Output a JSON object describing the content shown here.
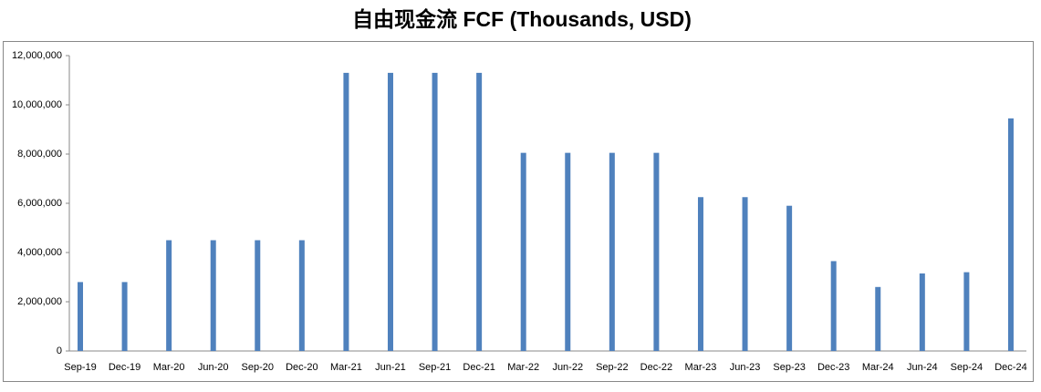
{
  "chart_data": {
    "type": "bar",
    "title": "自由现金流 FCF (Thousands, USD)",
    "categories": [
      "Sep-19",
      "Dec-19",
      "Mar-20",
      "Jun-20",
      "Sep-20",
      "Dec-20",
      "Mar-21",
      "Jun-21",
      "Sep-21",
      "Dec-21",
      "Mar-22",
      "Jun-22",
      "Sep-22",
      "Dec-22",
      "Mar-23",
      "Jun-23",
      "Sep-23",
      "Dec-23",
      "Mar-24",
      "Jun-24",
      "Sep-24",
      "Dec-24"
    ],
    "values": [
      2800000,
      2800000,
      4500000,
      4500000,
      4500000,
      4500000,
      11300000,
      11300000,
      11300000,
      11300000,
      8050000,
      8050000,
      8050000,
      8050000,
      6250000,
      6250000,
      5900000,
      3650000,
      2600000,
      3150000,
      3200000,
      9450000
    ],
    "color": "#4f81bd",
    "ylim": [
      0,
      12000000
    ],
    "yticks": [
      0,
      {
        "value": 2000000,
        "label": "2,000,000"
      },
      {
        "value": 4000000,
        "label": "4,000,000"
      },
      {
        "value": 6000000,
        "label": "6,000,000"
      },
      {
        "value": 8000000,
        "label": "8,000,000"
      },
      {
        "value": 10000000,
        "label": "10,000,000"
      },
      {
        "value": 12000000,
        "label": "12,000,000"
      }
    ],
    "grid": false
  }
}
